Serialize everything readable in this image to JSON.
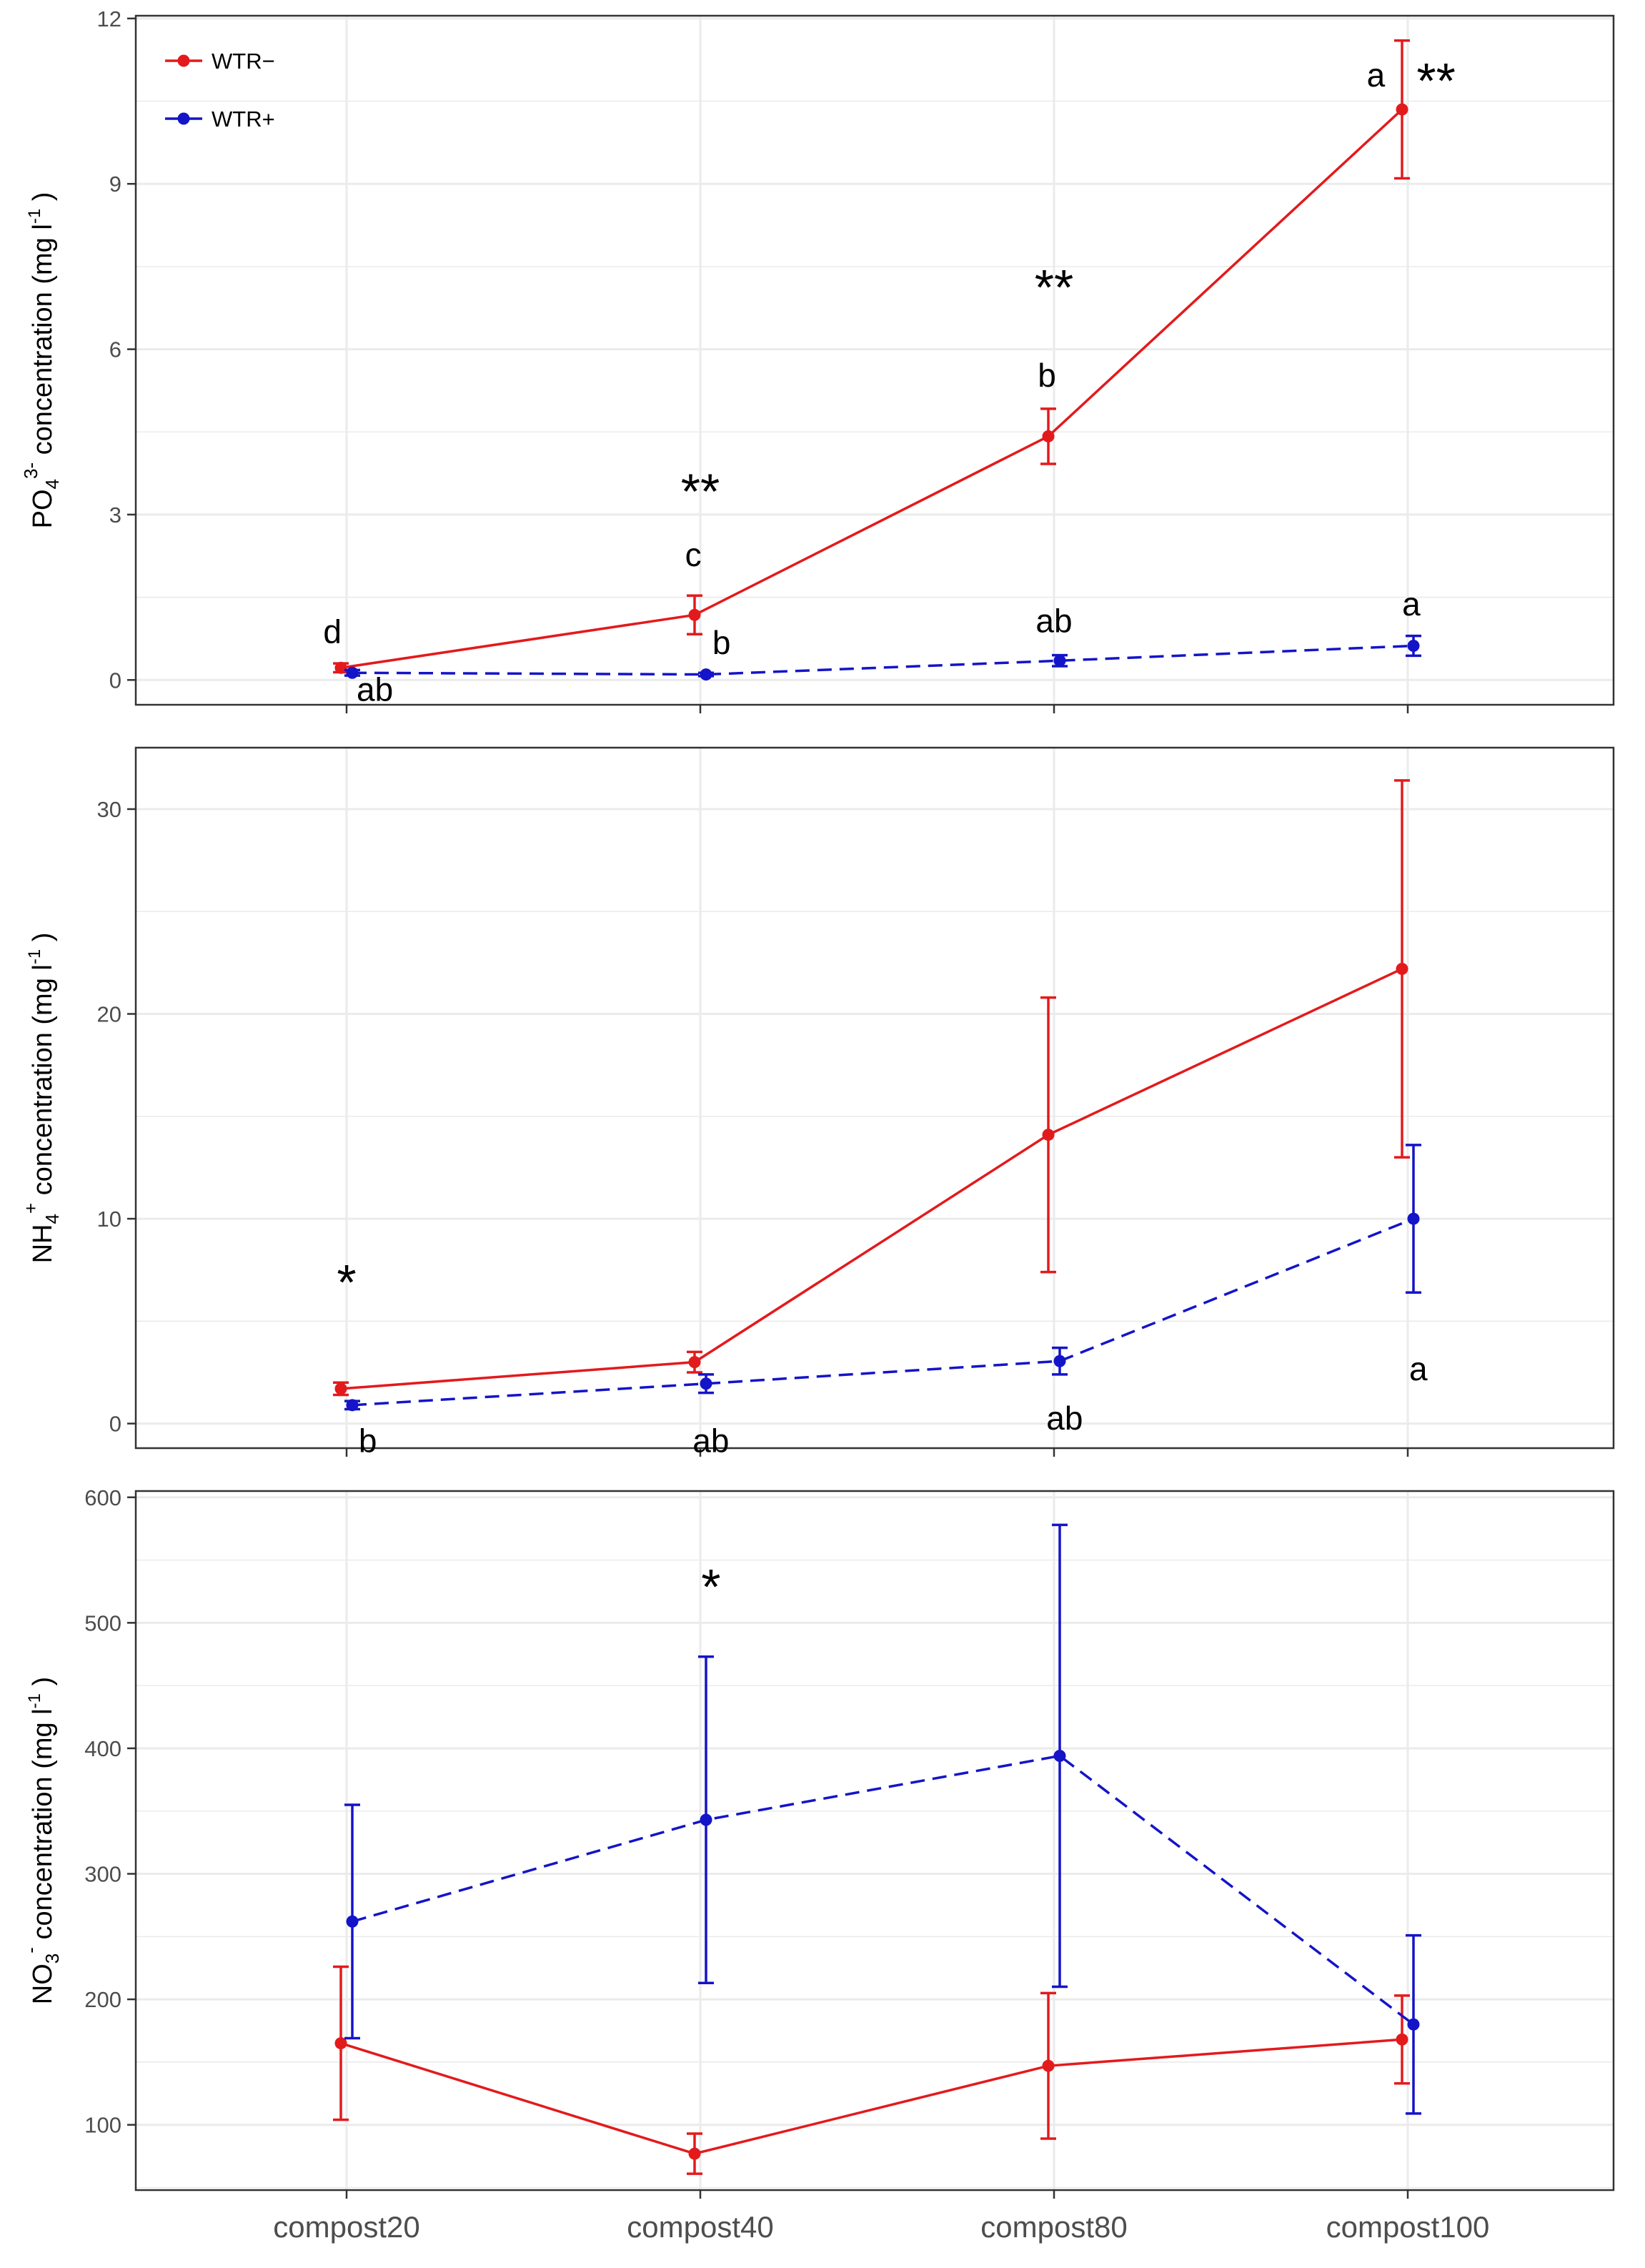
{
  "colors": {
    "wtr_minus": "#e31a1c",
    "wtr_plus": "#1414c8",
    "grid": "#ebebeb",
    "panel_border": "#333333",
    "tick_text": "#4d4d4d",
    "annotation": "#000000"
  },
  "legend": [
    {
      "label": "WTR−",
      "series": "WTR-"
    },
    {
      "label": "WTR+",
      "series": "WTR+"
    }
  ],
  "chart_data": [
    {
      "type": "line",
      "id": "po4",
      "ylabel_parts": {
        "base": "PO",
        "sub": "4",
        "sup": "3-",
        "rest": " concentration (mg l",
        "unit_sup": "-1",
        "end": ")"
      },
      "categories": [
        "compost20",
        "compost40",
        "compost80",
        "compost100"
      ],
      "ylim": [
        -0.45,
        12.05
      ],
      "yticks": [
        0,
        3,
        6,
        9,
        12
      ],
      "ytick_labels": [
        "0",
        "3",
        "6",
        "9",
        "12"
      ],
      "series": [
        {
          "name": "WTR-",
          "values": [
            0.22,
            1.18,
            4.42,
            10.35
          ],
          "errors": [
            0.08,
            0.35,
            0.5,
            1.25
          ],
          "dashed": false
        },
        {
          "name": "WTR+",
          "values": [
            0.13,
            0.1,
            0.35,
            0.62
          ],
          "errors": [
            0.05,
            0.03,
            0.1,
            0.18
          ],
          "dashed": true
        }
      ],
      "annotations": [
        {
          "text": "d",
          "cat": 0,
          "dx": -0.04,
          "y": 0.85
        },
        {
          "text": "ab",
          "cat": 0,
          "dx": 0.08,
          "y": -0.2
        },
        {
          "text": "c",
          "cat": 1,
          "dx": -0.02,
          "y": 2.25
        },
        {
          "text": "b",
          "cat": 1,
          "dx": 0.06,
          "y": 0.65
        },
        {
          "text": "**",
          "cat": 1,
          "dx": 0.0,
          "y": 3.5,
          "big": true
        },
        {
          "text": "b",
          "cat": 2,
          "dx": -0.02,
          "y": 5.5
        },
        {
          "text": "ab",
          "cat": 2,
          "dx": 0.0,
          "y": 1.05
        },
        {
          "text": "**",
          "cat": 2,
          "dx": 0.0,
          "y": 7.2,
          "big": true
        },
        {
          "text": "a",
          "cat": 3,
          "dx": -0.09,
          "y": 10.95
        },
        {
          "text": "**",
          "cat": 3,
          "dx": 0.08,
          "y": 10.95,
          "big": true
        },
        {
          "text": "a",
          "cat": 3,
          "dx": 0.01,
          "y": 1.35
        }
      ]
    },
    {
      "type": "line",
      "id": "nh4",
      "ylabel_parts": {
        "base": "NH",
        "sub": "4",
        "sup": "+",
        "rest": " concentration (mg l",
        "unit_sup": "-1",
        "end": ")"
      },
      "categories": [
        "compost20",
        "compost40",
        "compost80",
        "compost100"
      ],
      "ylim": [
        -1.2,
        33.0
      ],
      "yticks": [
        0,
        10,
        20,
        30
      ],
      "ytick_labels": [
        "0",
        "10",
        "20",
        "30"
      ],
      "series": [
        {
          "name": "WTR-",
          "values": [
            1.7,
            3.0,
            14.1,
            22.2
          ],
          "errors": [
            0.3,
            0.5,
            6.7,
            9.2
          ],
          "dashed": false
        },
        {
          "name": "WTR+",
          "values": [
            0.9,
            1.95,
            3.05,
            10.0
          ],
          "errors": [
            0.2,
            0.45,
            0.65,
            3.6
          ],
          "dashed": true
        }
      ],
      "annotations": [
        {
          "text": "*",
          "cat": 0,
          "dx": 0.0,
          "y": 7.1,
          "big": true
        },
        {
          "text": "b",
          "cat": 0,
          "dx": 0.06,
          "y": -0.9
        },
        {
          "text": "ab",
          "cat": 1,
          "dx": 0.03,
          "y": -0.9
        },
        {
          "text": "ab",
          "cat": 2,
          "dx": 0.03,
          "y": 0.2
        },
        {
          "text": "a",
          "cat": 3,
          "dx": 0.03,
          "y": 2.6
        }
      ]
    },
    {
      "type": "line",
      "id": "no3",
      "ylabel_parts": {
        "base": "NO",
        "sub": "3",
        "sup": "-",
        "rest": " concentration (mg l",
        "unit_sup": "-1",
        "end": ")"
      },
      "categories": [
        "compost20",
        "compost40",
        "compost80",
        "compost100"
      ],
      "xlabel": "",
      "ylim": [
        48,
        605
      ],
      "yticks": [
        100,
        200,
        300,
        400,
        500,
        600
      ],
      "ytick_labels": [
        "100",
        "200",
        "300",
        "400",
        "500",
        "600"
      ],
      "series": [
        {
          "name": "WTR-",
          "values": [
            165,
            77,
            147,
            168
          ],
          "errors": [
            61,
            16,
            58,
            35
          ],
          "dashed": false
        },
        {
          "name": "WTR+",
          "values": [
            262,
            343,
            394,
            180
          ],
          "errors": [
            93,
            130,
            184,
            71
          ],
          "dashed": true
        }
      ],
      "annotations": [
        {
          "text": "*",
          "cat": 1,
          "dx": 0.03,
          "y": 532,
          "big": true
        }
      ]
    }
  ]
}
